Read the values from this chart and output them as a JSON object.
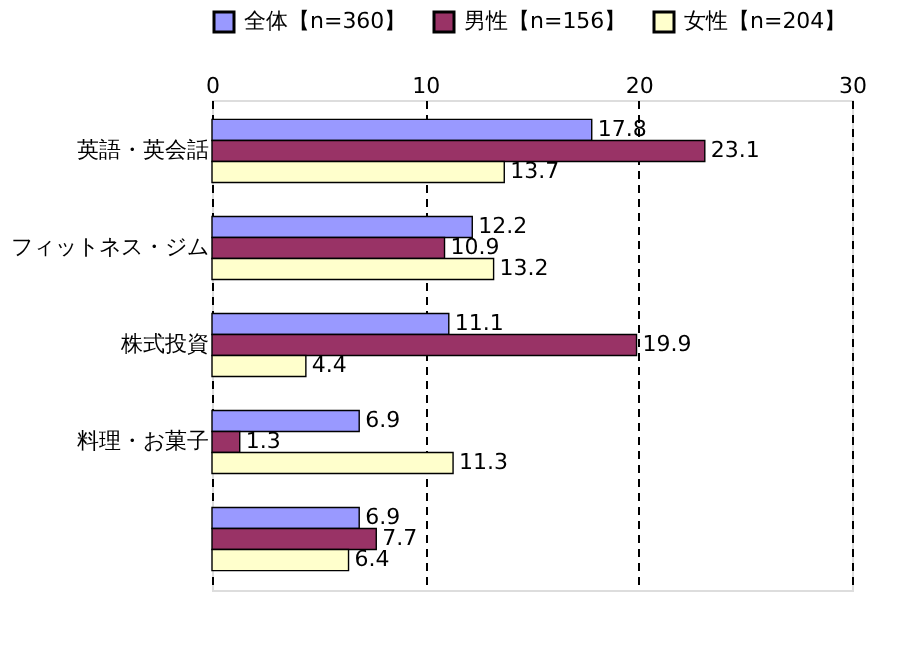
{
  "chart_data": {
    "type": "bar",
    "orientation": "horizontal",
    "categories": [
      "英語・英会話",
      "フィットネス・ジム",
      "株式投資",
      "料理・お菓子",
      null
    ],
    "series": [
      {
        "name": "全体【n=360】",
        "color": "#9999ff",
        "values": [
          17.8,
          12.2,
          11.1,
          6.9,
          6.9
        ]
      },
      {
        "name": "男性【n=156】",
        "color": "#993366",
        "values": [
          23.1,
          10.9,
          19.9,
          1.3,
          7.7
        ]
      },
      {
        "name": "女性【n=204】",
        "color": "#ffffcc",
        "values": [
          13.7,
          13.2,
          4.4,
          11.3,
          6.4
        ]
      }
    ],
    "xlim": [
      0,
      30
    ],
    "xticks": [
      0,
      10,
      20,
      30
    ],
    "grid": "x",
    "legend": "top",
    "data_labels": true
  }
}
